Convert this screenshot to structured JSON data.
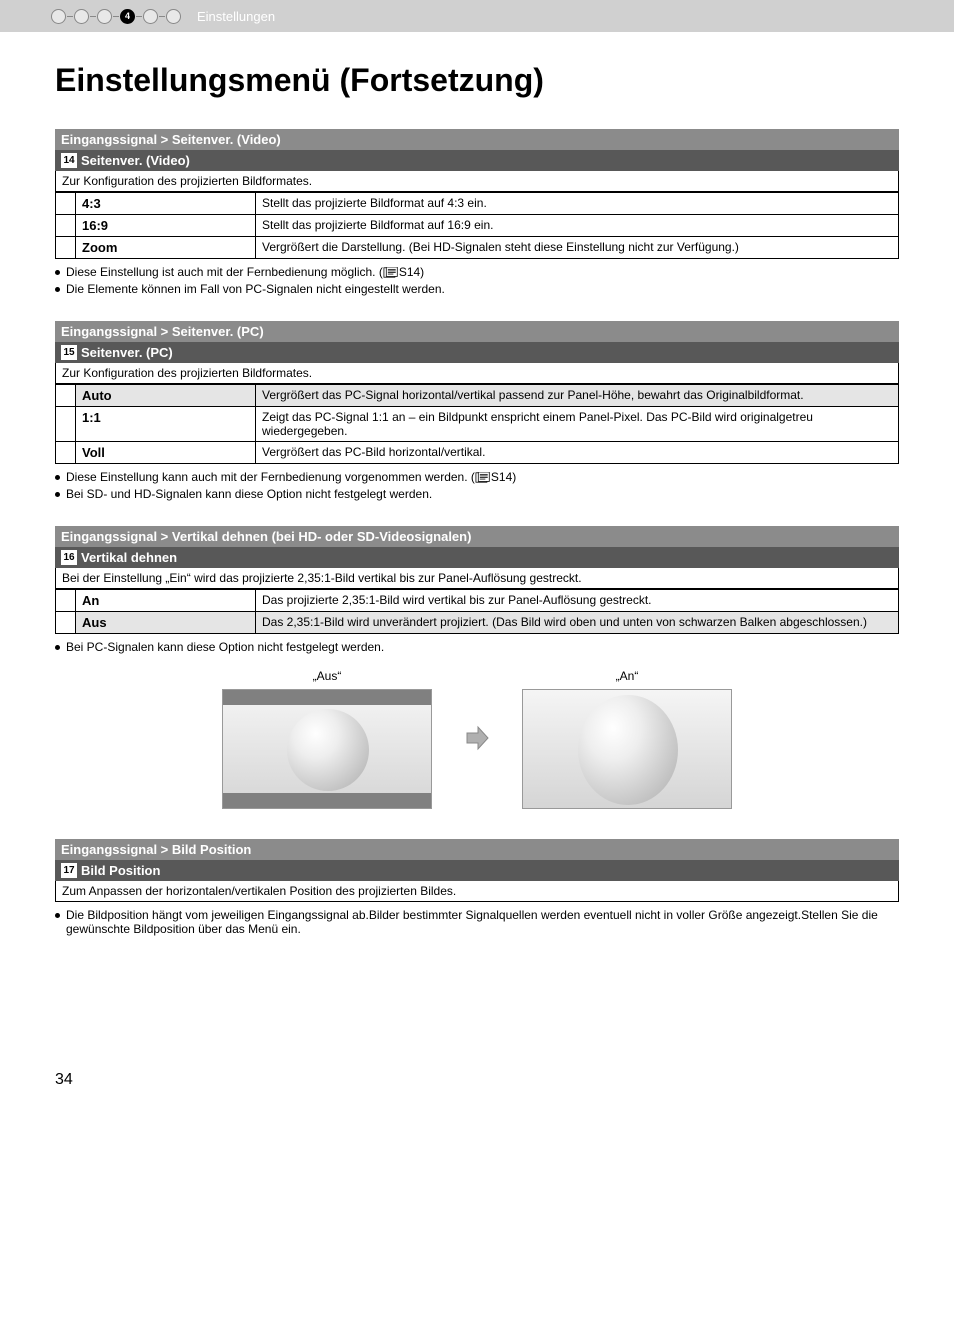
{
  "header": {
    "active_step": "4",
    "label": "Einstellungen"
  },
  "title": "Einstellungsmenü (Fortsetzung)",
  "sections": [
    {
      "header": "Eingangssignal > Seitenver. (Video)",
      "num": "14",
      "subtitle": "Seitenver. (Video)",
      "config": "Zur Konfiguration des projizierten Bildformates.",
      "rows": [
        {
          "key": "4:3",
          "shaded": false,
          "desc": "Stellt das projizierte Bildformat auf 4:3 ein."
        },
        {
          "key": "16:9",
          "shaded": false,
          "desc": "Stellt das projizierte Bildformat auf 16:9 ein."
        },
        {
          "key": "Zoom",
          "shaded": false,
          "desc": "Vergrößert die Darstellung. (Bei HD-Signalen steht diese Einstellung nicht zur Verfügung.)"
        }
      ],
      "bullets": [
        {
          "text": "Diese Einstellung ist auch mit der Fernbedienung möglich. (",
          "ref": "S14",
          "tail": ")"
        },
        {
          "text": "Die Elemente können im Fall von PC-Signalen nicht eingestellt werden."
        }
      ]
    },
    {
      "header": "Eingangssignal > Seitenver. (PC)",
      "num": "15",
      "subtitle": "Seitenver. (PC)",
      "config": "Zur Konfiguration des projizierten Bildformates.",
      "rows": [
        {
          "key": "Auto",
          "shaded": true,
          "desc": "Vergrößert das PC-Signal horizontal/vertikal passend zur Panel-Höhe, bewahrt das Originalbildformat."
        },
        {
          "key": "1:1",
          "shaded": false,
          "desc": "Zeigt das PC-Signal 1:1 an – ein Bildpunkt enspricht einem Panel-Pixel. Das PC-Bild wird originalgetreu wiedergegeben."
        },
        {
          "key": "Voll",
          "shaded": false,
          "desc": "Vergrößert das PC-Bild horizontal/vertikal."
        }
      ],
      "bullets": [
        {
          "text": "Diese Einstellung kann auch mit der Fernbedienung vorgenommen werden. (",
          "ref": "S14",
          "tail": ")"
        },
        {
          "text": "Bei SD- und HD-Signalen kann diese Option nicht festgelegt werden."
        }
      ]
    },
    {
      "header": "Eingangssignal > Vertikal dehnen (bei HD- oder SD-Videosignalen)",
      "num": "16",
      "subtitle": "Vertikal dehnen",
      "config": "Bei der Einstellung „Ein“ wird das projizierte 2,35:1-Bild vertikal bis zur Panel-Auflösung gestreckt.",
      "rows": [
        {
          "key": "An",
          "shaded": false,
          "desc": "Das projizierte 2,35:1-Bild wird vertikal bis zur Panel-Auflösung gestreckt."
        },
        {
          "key": "Aus",
          "shaded": true,
          "desc": "Das 2,35:1-Bild wird unverändert projiziert. (Das Bild wird oben und unten von schwarzen Balken abgeschlossen.)"
        }
      ],
      "bullets": [
        {
          "text": "Bei PC-Signalen kann diese Option nicht festgelegt werden."
        }
      ],
      "images": {
        "left_label": "„Aus“",
        "right_label": "„An“"
      }
    },
    {
      "header": "Eingangssignal > Bild Position",
      "num": "17",
      "subtitle": "Bild Position",
      "config": "Zum Anpassen der horizontalen/vertikalen Position des projizierten Bildes.",
      "rows": [],
      "bullets": [
        {
          "text": "Die Bildposition hängt vom jeweiligen Eingangssignal ab.Bilder bestimmter Signalquellen werden eventuell nicht in voller Größe angezeigt.Stellen Sie die gewünschte Bildposition über das Menü ein."
        }
      ]
    }
  ],
  "page_number": "34"
}
